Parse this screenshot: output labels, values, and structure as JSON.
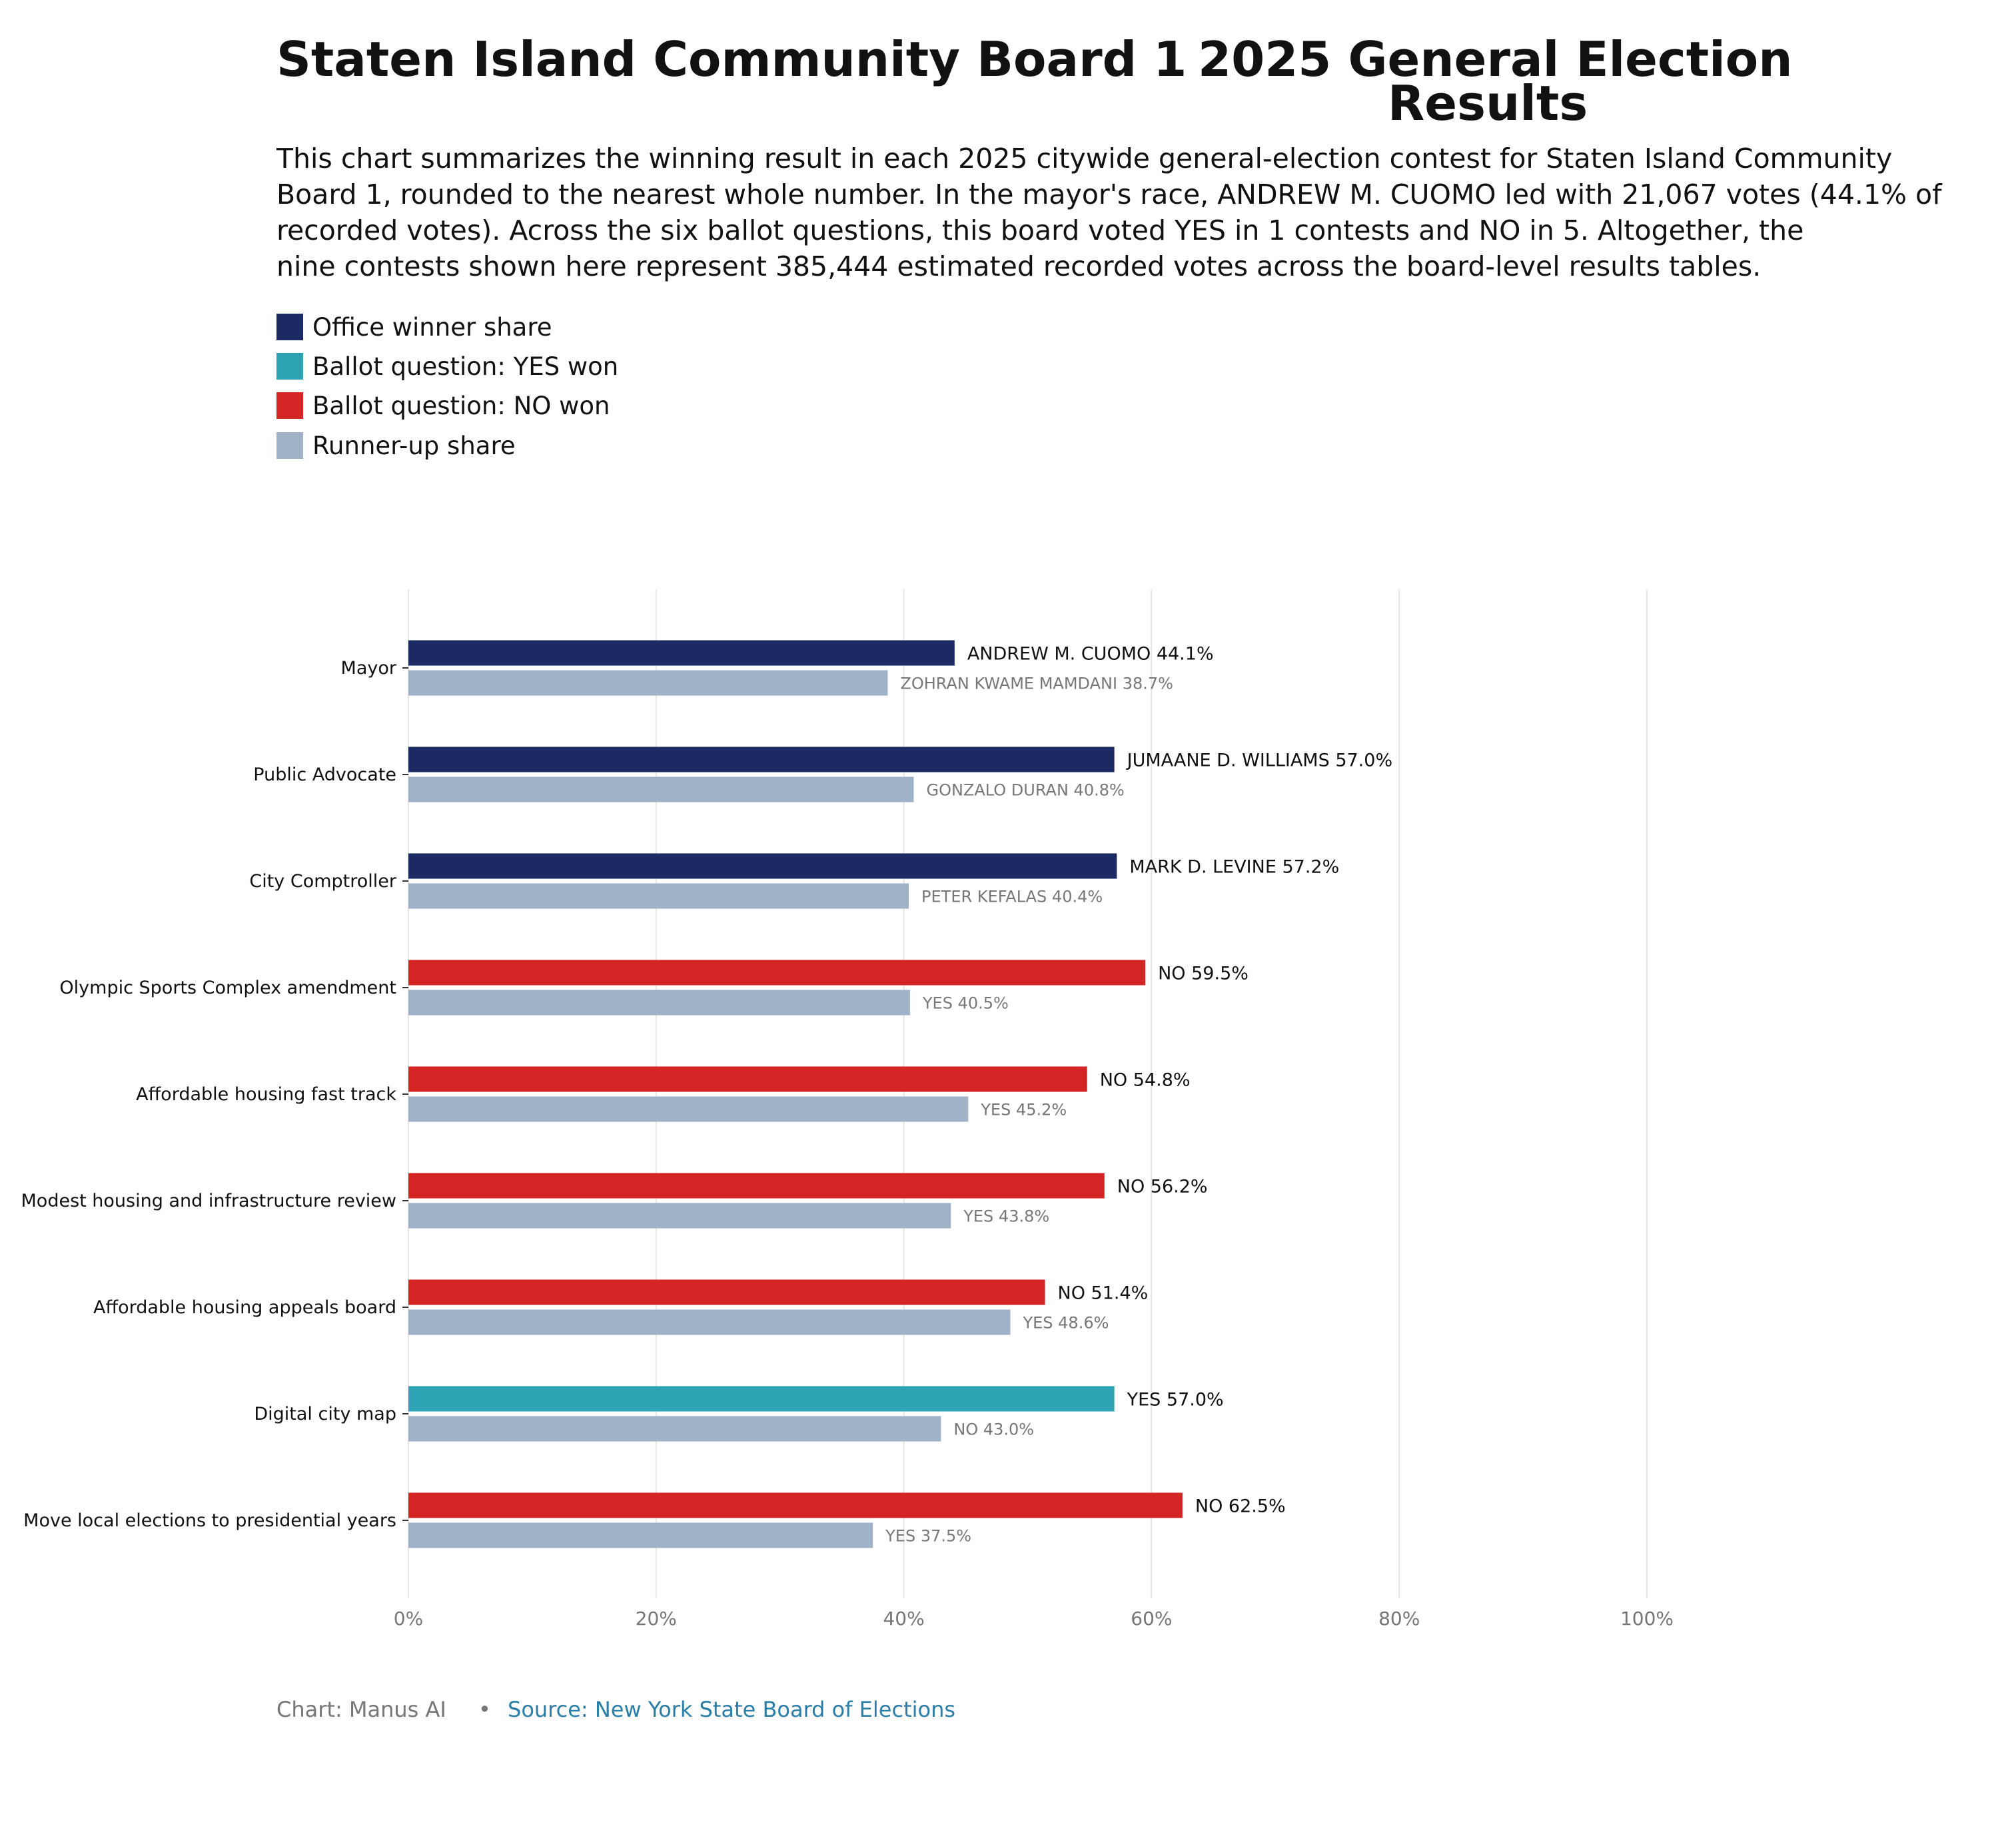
{
  "title": {
    "part1": "Staten Island Community Board 1",
    "part2": "2025 General Election",
    "part3": "Results"
  },
  "description": [
    "This chart summarizes the winning result in each 2025 citywide general-election contest for Staten Island Community",
    "Board 1, rounded to the nearest whole number. In the mayor's race, ANDREW M. CUOMO led with 21,067 votes (44.1% of",
    "recorded votes). Across the six ballot questions, this board voted YES in 1 contests and NO in 5. Altogether, the",
    "nine contests shown here represent 385,444 estimated recorded votes across the board-level results tables."
  ],
  "legend": [
    {
      "label": "Office winner share",
      "color": "#1b2a63"
    },
    {
      "label": "Ballot question: YES won",
      "color": "#2ea3b4"
    },
    {
      "label": "Ballot question: NO won",
      "color": "#d42424"
    },
    {
      "label": "Runner-up share",
      "color": "#9fb2c8"
    }
  ],
  "colors": {
    "office": "#1b2a63",
    "yes_won": "#2ea3b4",
    "no_won": "#d42424",
    "runner_up": "#9fb2c8",
    "grid": "#e6e6e6",
    "axis_text": "#777777",
    "runner_label": "#777777"
  },
  "chart_data": {
    "type": "bar",
    "orientation": "horizontal",
    "xlim": [
      0,
      100
    ],
    "xticks": [
      0,
      20,
      40,
      60,
      80,
      100
    ],
    "xtick_labels": [
      "0%",
      "20%",
      "40%",
      "60%",
      "80%",
      "100%"
    ],
    "grid": true,
    "legend_position": "top-left",
    "contests": [
      {
        "contest": "Mayor",
        "kind": "office",
        "winner": "ANDREW M. CUOMO",
        "winner_share": 44.1,
        "runner_up": "ZOHRAN KWAME MAMDANI",
        "runner_up_share": 38.7
      },
      {
        "contest": "Public Advocate",
        "kind": "office",
        "winner": "JUMAANE D. WILLIAMS",
        "winner_share": 57.0,
        "runner_up": "GONZALO DURAN",
        "runner_up_share": 40.8
      },
      {
        "contest": "City Comptroller",
        "kind": "office",
        "winner": "MARK D. LEVINE",
        "winner_share": 57.2,
        "runner_up": "PETER KEFALAS",
        "runner_up_share": 40.4
      },
      {
        "contest": "Olympic Sports Complex amendment",
        "kind": "no_won",
        "winner": "NO",
        "winner_share": 59.5,
        "runner_up": "YES",
        "runner_up_share": 40.5
      },
      {
        "contest": "Affordable housing fast track",
        "kind": "no_won",
        "winner": "NO",
        "winner_share": 54.8,
        "runner_up": "YES",
        "runner_up_share": 45.2
      },
      {
        "contest": "Modest housing and infrastructure review",
        "kind": "no_won",
        "winner": "NO",
        "winner_share": 56.2,
        "runner_up": "YES",
        "runner_up_share": 43.8
      },
      {
        "contest": "Affordable housing appeals board",
        "kind": "no_won",
        "winner": "NO",
        "winner_share": 51.4,
        "runner_up": "YES",
        "runner_up_share": 48.6
      },
      {
        "contest": "Digital city map",
        "kind": "yes_won",
        "winner": "YES",
        "winner_share": 57.0,
        "runner_up": "NO",
        "runner_up_share": 43.0
      },
      {
        "contest": "Move local elections to presidential years",
        "kind": "no_won",
        "winner": "NO",
        "winner_share": 62.5,
        "runner_up": "YES",
        "runner_up_share": 37.5
      }
    ]
  },
  "footer": {
    "credit": "Chart: Manus AI",
    "bullet": "•",
    "source": "Source: New York State Board of Elections"
  }
}
